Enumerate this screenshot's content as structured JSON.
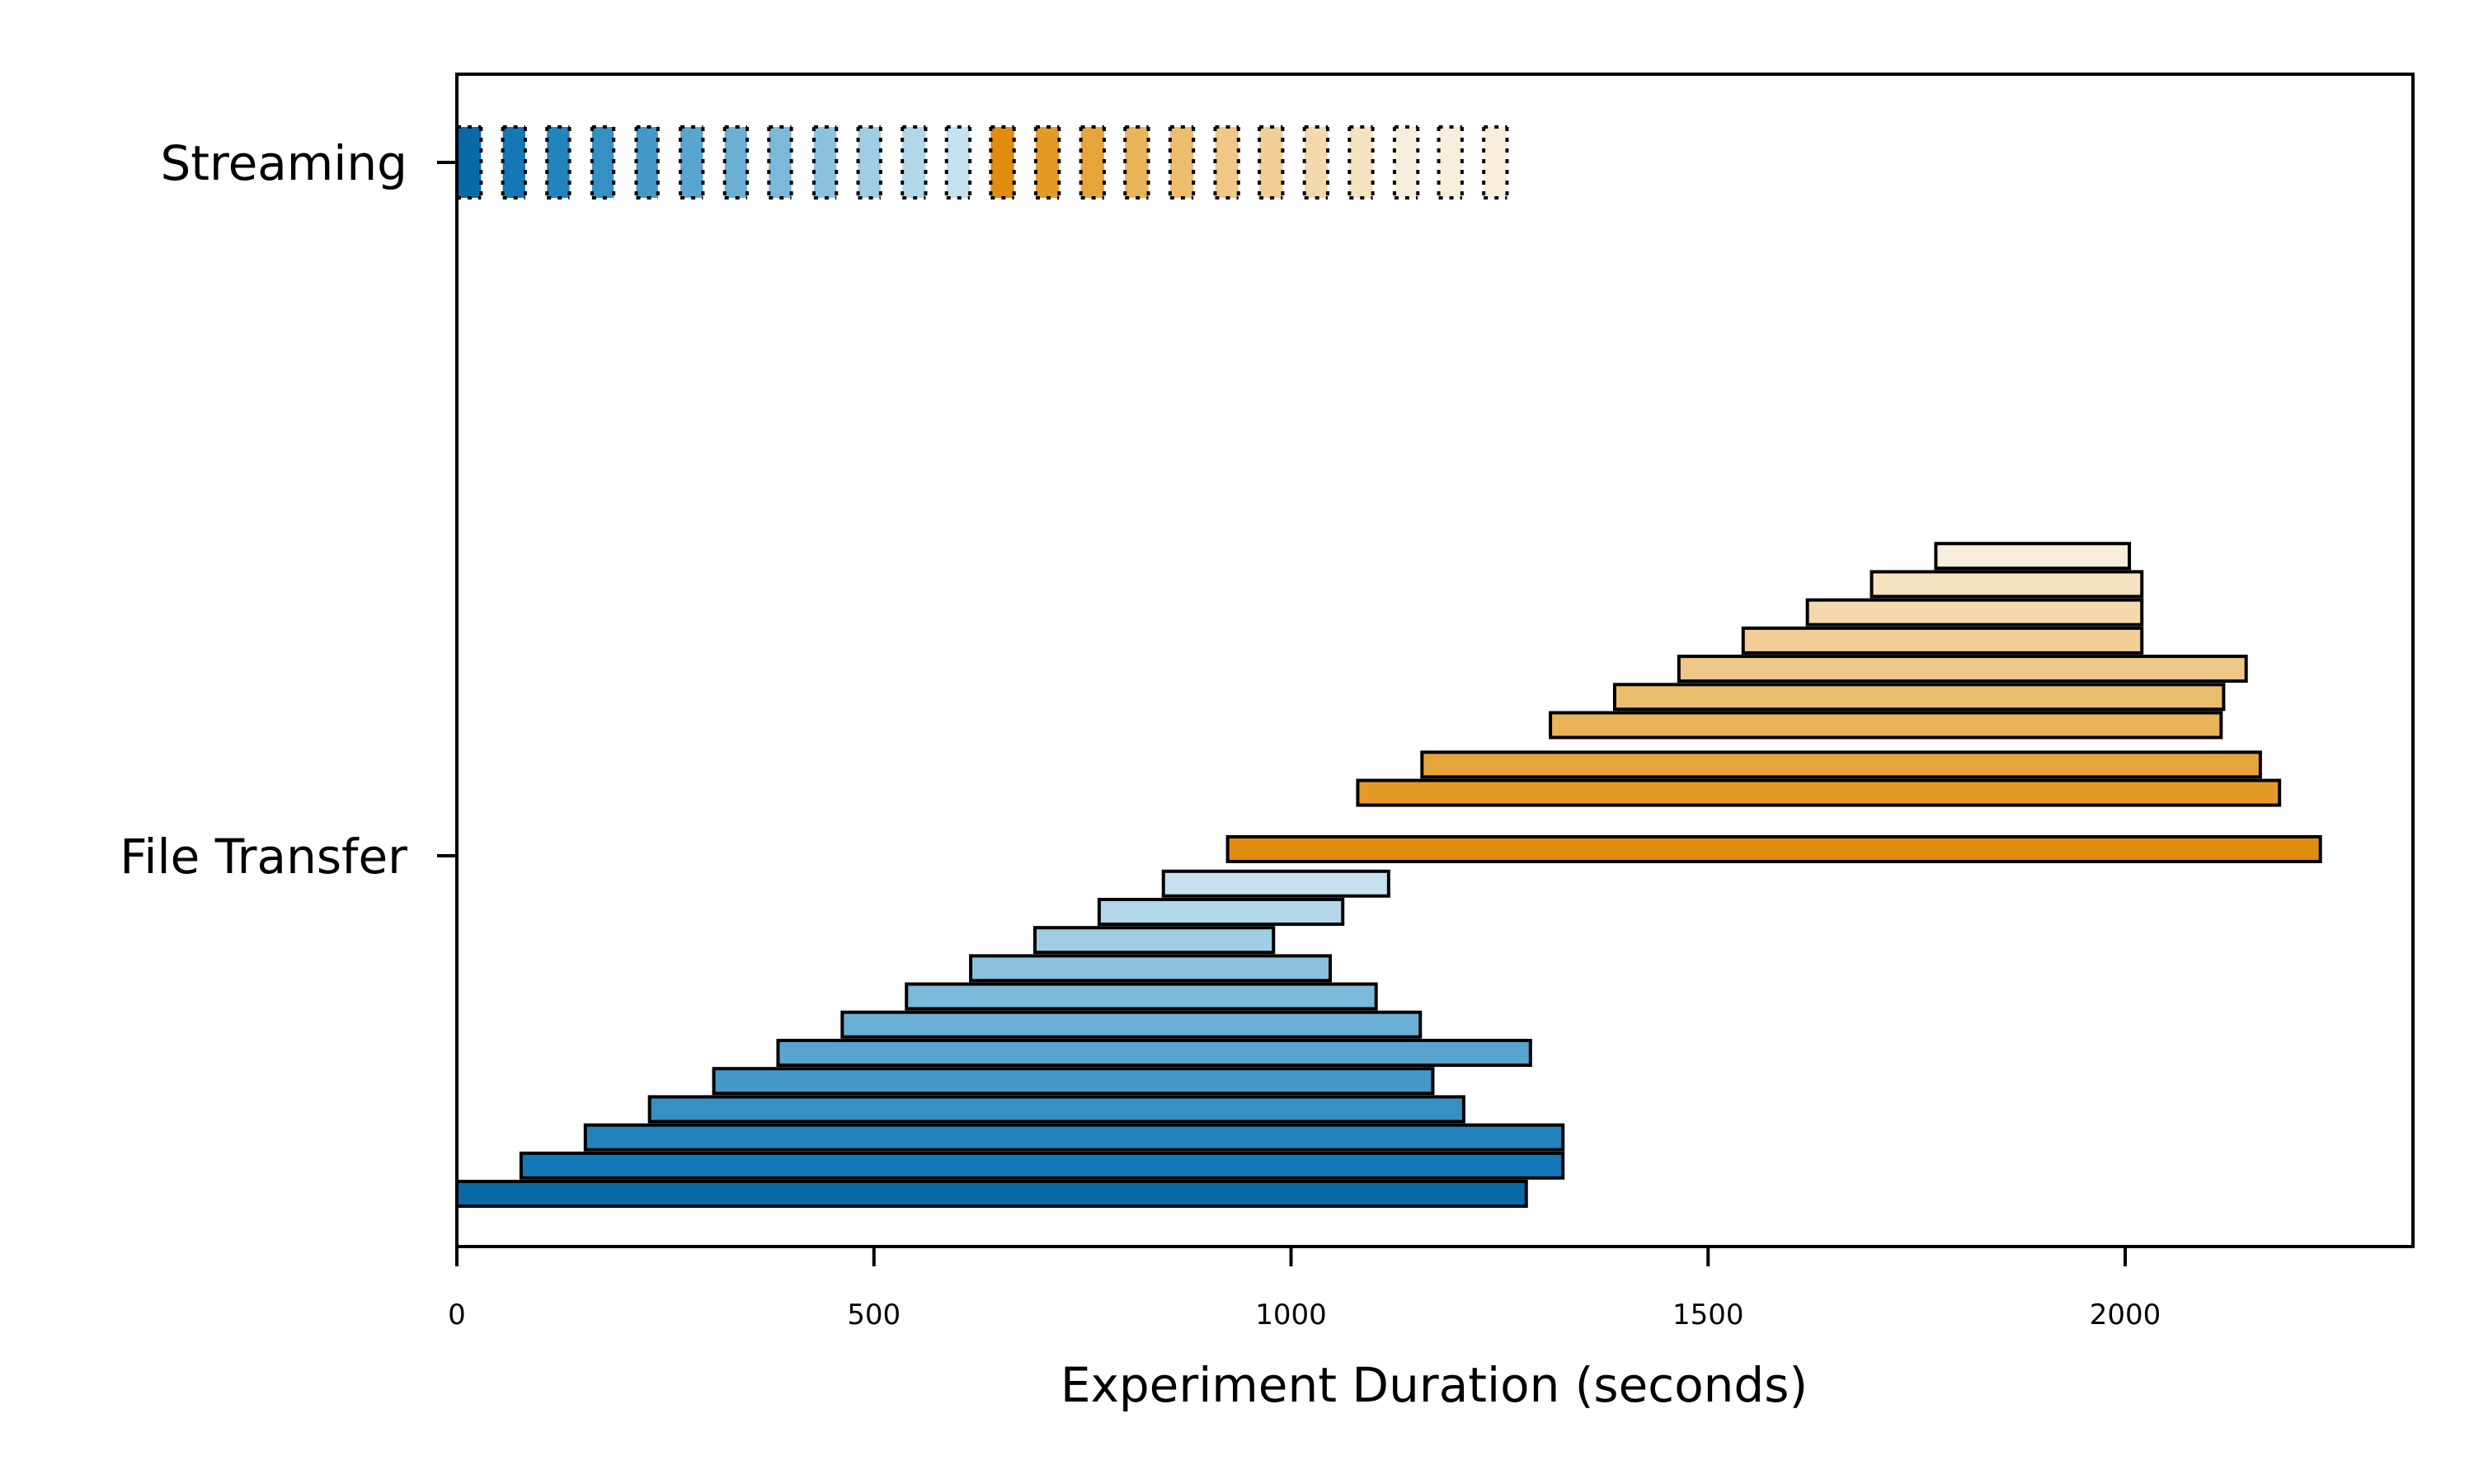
{
  "chart_data": {
    "type": "bar",
    "orientation": "horizontal",
    "xlabel": "Experiment Duration (seconds)",
    "ylabel": "",
    "xlim": [
      0,
      2345
    ],
    "xticks": [
      0,
      500,
      1000,
      1500,
      2000
    ],
    "categories": [
      "Streaming",
      "File Transfer"
    ],
    "grid": false,
    "legend": "none",
    "colors": {
      "edge": "#000000",
      "blue": [
        "#0a6aa8",
        "#1477b6",
        "#2284bc",
        "#3590c3",
        "#4599c8",
        "#58a5cf",
        "#6aafd4",
        "#7bb8d9",
        "#8cc2de",
        "#a0cde4",
        "#b3d7ea",
        "#c6e1ef"
      ],
      "orange": [
        "#e08c0c",
        "#e49b26",
        "#e6a53a",
        "#e9b358",
        "#ecbd6c",
        "#efc889",
        "#f1cf97",
        "#f3d9ac",
        "#f5e2c0",
        "#f9eedb"
      ]
    },
    "file_transfer_blue": [
      {
        "start": 0,
        "end": 1282
      },
      {
        "start": 77,
        "end": 1326
      },
      {
        "start": 154,
        "end": 1326
      },
      {
        "start": 231,
        "end": 1207
      },
      {
        "start": 308,
        "end": 1170
      },
      {
        "start": 385,
        "end": 1287
      },
      {
        "start": 462,
        "end": 1155
      },
      {
        "start": 539,
        "end": 1102
      },
      {
        "start": 616,
        "end": 1047
      },
      {
        "start": 693,
        "end": 979
      },
      {
        "start": 770,
        "end": 1062
      },
      {
        "start": 847,
        "end": 1117
      }
    ],
    "file_transfer_orange": [
      {
        "start": 924,
        "end": 2234
      },
      {
        "start": 1080,
        "end": 2185
      },
      {
        "start": 1157,
        "end": 2162
      },
      {
        "start": 1311,
        "end": 2115
      },
      {
        "start": 1388,
        "end": 2118
      },
      {
        "start": 1465,
        "end": 2145
      },
      {
        "start": 1542,
        "end": 2020
      },
      {
        "start": 1619,
        "end": 2020
      },
      {
        "start": 1696,
        "end": 2020
      },
      {
        "start": 1773,
        "end": 2005
      }
    ],
    "streaming_blue": [
      {
        "start": 0,
        "end": 29
      },
      {
        "start": 55,
        "end": 82
      },
      {
        "start": 108,
        "end": 135
      },
      {
        "start": 162,
        "end": 188
      },
      {
        "start": 215,
        "end": 241
      },
      {
        "start": 268,
        "end": 295
      },
      {
        "start": 321,
        "end": 348
      },
      {
        "start": 374,
        "end": 401
      },
      {
        "start": 428,
        "end": 455
      },
      {
        "start": 481,
        "end": 508
      },
      {
        "start": 534,
        "end": 562
      },
      {
        "start": 587,
        "end": 615
      }
    ],
    "streaming_orange": [
      {
        "start": 640,
        "end": 668
      },
      {
        "start": 694,
        "end": 722
      },
      {
        "start": 748,
        "end": 776
      },
      {
        "start": 801,
        "end": 829
      },
      {
        "start": 855,
        "end": 883
      },
      {
        "start": 909,
        "end": 937
      },
      {
        "start": 962,
        "end": 990
      },
      {
        "start": 1016,
        "end": 1044
      },
      {
        "start": 1070,
        "end": 1098
      },
      {
        "start": 1124,
        "end": 1152
      },
      {
        "start": 1177,
        "end": 1205
      },
      {
        "start": 1231,
        "end": 1259
      }
    ]
  }
}
